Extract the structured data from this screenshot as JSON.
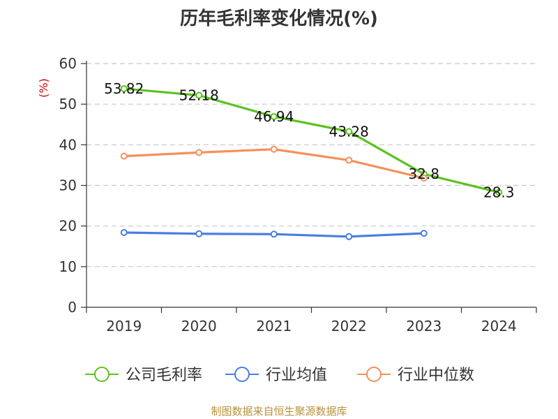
{
  "chart_data": {
    "type": "line",
    "title": "历年毛利率变化情况(%)",
    "ylabel": "(%)",
    "xlabel": "",
    "categories": [
      "2019",
      "2020",
      "2021",
      "2022",
      "2023",
      "2024"
    ],
    "ylim": [
      0,
      60
    ],
    "yticks": [
      0,
      10,
      20,
      30,
      40,
      50,
      60
    ],
    "grid": true,
    "legend_position": "bottom",
    "series": [
      {
        "name": "公司毛利率",
        "color": "#5cc21f",
        "values": [
          53.82,
          52.18,
          46.94,
          43.28,
          32.8,
          28.3
        ],
        "labels": [
          "53.82",
          "52.18",
          "46.94",
          "43.28",
          "32.8",
          "28.3"
        ]
      },
      {
        "name": "行业均值",
        "color": "#4a7ee0",
        "values": [
          18.4,
          18.1,
          18.0,
          17.4,
          18.2,
          null
        ]
      },
      {
        "name": "行业中位数",
        "color": "#f5905b",
        "values": [
          37.2,
          38.1,
          38.9,
          36.2,
          31.8,
          null
        ]
      }
    ]
  },
  "footer": {
    "source": "制图数据来自恒生聚源数据库"
  }
}
